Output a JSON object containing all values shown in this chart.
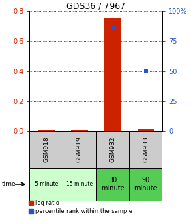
{
  "title": "GDS36 / 7967",
  "samples": [
    "GSM918",
    "GSM919",
    "GSM932",
    "GSM933"
  ],
  "times": [
    "5 minute",
    "15 minute",
    "30\nminute",
    "90\nminute"
  ],
  "time_colors": [
    "#ccffcc",
    "#ccffcc",
    "#55cc55",
    "#55cc55"
  ],
  "log_ratio": [
    0.0,
    0.0,
    0.75,
    0.01
  ],
  "percentile_rank": [
    null,
    null,
    86,
    50
  ],
  "ylim_left": [
    0,
    0.8
  ],
  "ylim_right": [
    0,
    100
  ],
  "yticks_left": [
    0,
    0.2,
    0.4,
    0.6,
    0.8
  ],
  "yticks_right": [
    0,
    25,
    50,
    75,
    100
  ],
  "bar_color": "#cc2200",
  "dot_color": "#2255cc",
  "left_tick_color": "#cc2200",
  "right_tick_color": "#2255cc",
  "sample_bg_color": "#cccccc",
  "legend_red_label": "log ratio",
  "legend_blue_label": "percentile rank within the sample",
  "bar_width": 0.5,
  "marker_size": 5
}
